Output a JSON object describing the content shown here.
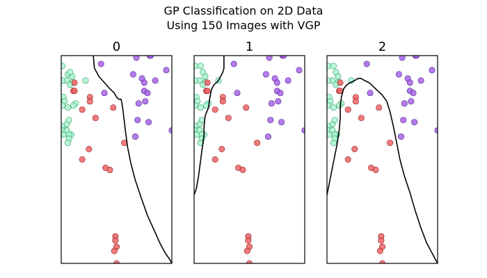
{
  "figure": {
    "title_line1": "GP Classification on 2D Data",
    "title_line2": "Using 150 Images with VGP"
  },
  "colors": {
    "class_green": "#aff5d2",
    "class_green_edge": "#1f9a5a",
    "class_red": "#ee6466",
    "class_red_edge": "#8a1e1e",
    "class_purple": "#a864ea",
    "class_purple_edge": "#4c1f86",
    "boundary": "#000000"
  },
  "chart_data": [
    {
      "type": "scatter",
      "title": "0",
      "xlim": [
        0,
        100
      ],
      "ylim": [
        0,
        100
      ],
      "grid": false,
      "series": [
        {
          "class": "green",
          "points": [
            [
              1,
              95
            ],
            [
              6,
              91
            ],
            [
              10,
              90
            ],
            [
              5,
              88
            ],
            [
              1,
              88
            ],
            [
              10,
              87
            ],
            [
              22,
              88
            ],
            [
              8,
              86
            ],
            [
              2,
              80
            ],
            [
              13,
              77
            ],
            [
              11,
              76
            ],
            [
              3,
              78
            ],
            [
              1,
              76
            ],
            [
              6,
              75
            ],
            [
              5,
              67
            ],
            [
              1,
              66
            ],
            [
              1,
              64
            ],
            [
              5,
              64
            ],
            [
              2,
              62
            ],
            [
              9,
              62
            ],
            [
              7,
              62
            ],
            [
              7,
              60
            ],
            [
              6,
              58
            ],
            [
              7,
              69
            ],
            [
              8,
              92
            ]
          ]
        },
        {
          "class": "red",
          "points": [
            [
              12,
              87
            ],
            [
              11,
              83
            ],
            [
              12,
              83
            ],
            [
              26,
              80
            ],
            [
              19,
              74
            ],
            [
              26,
              78
            ],
            [
              47,
              75
            ],
            [
              31,
              70
            ],
            [
              57,
              58
            ],
            [
              25,
              55
            ],
            [
              19,
              50
            ],
            [
              40,
              46
            ],
            [
              44,
              45
            ],
            [
              49,
              13
            ],
            [
              49,
              11
            ],
            [
              50,
              8
            ],
            [
              48,
              6
            ],
            [
              50,
              0
            ]
          ]
        },
        {
          "class": "purple",
          "points": [
            [
              80,
              100
            ],
            [
              81,
              100
            ],
            [
              68,
              99
            ],
            [
              36,
              96
            ],
            [
              95,
              93
            ],
            [
              65,
              91
            ],
            [
              73,
              89
            ],
            [
              75,
              87
            ],
            [
              85,
              88
            ],
            [
              75,
              83
            ],
            [
              78,
              82
            ],
            [
              39,
              82
            ],
            [
              76,
              78
            ],
            [
              70,
              77
            ],
            [
              69,
              69
            ],
            [
              79,
              68
            ],
            [
              67,
              61
            ],
            [
              100,
              64
            ]
          ]
        }
      ],
      "boundary": [
        [
          29,
          100
        ],
        [
          30,
          94
        ],
        [
          34,
          90
        ],
        [
          39,
          87
        ],
        [
          44,
          84
        ],
        [
          48,
          82
        ],
        [
          50,
          80
        ],
        [
          52,
          79
        ],
        [
          54,
          79
        ],
        [
          55,
          77
        ],
        [
          56,
          73
        ],
        [
          58,
          64
        ],
        [
          60,
          56
        ],
        [
          63,
          48
        ],
        [
          67,
          40
        ],
        [
          72,
          32
        ],
        [
          78,
          23
        ],
        [
          84,
          16
        ],
        [
          89,
          10
        ],
        [
          94,
          5
        ],
        [
          98,
          2
        ],
        [
          100,
          0
        ]
      ]
    },
    {
      "type": "scatter",
      "title": "1",
      "xlim": [
        0,
        100
      ],
      "ylim": [
        0,
        100
      ],
      "grid": false,
      "series": [
        {
          "class": "green",
          "points": [
            [
              1,
              95
            ],
            [
              6,
              95
            ],
            [
              10,
              90
            ],
            [
              5,
              88
            ],
            [
              1,
              88
            ],
            [
              10,
              87
            ],
            [
              22,
              88
            ],
            [
              8,
              86
            ],
            [
              2,
              80
            ],
            [
              13,
              77
            ],
            [
              11,
              76
            ],
            [
              3,
              78
            ],
            [
              1,
              76
            ],
            [
              6,
              75
            ],
            [
              5,
              67
            ],
            [
              1,
              66
            ],
            [
              1,
              64
            ],
            [
              5,
              64
            ],
            [
              2,
              62
            ],
            [
              9,
              62
            ],
            [
              7,
              62
            ],
            [
              7,
              60
            ],
            [
              6,
              58
            ],
            [
              7,
              69
            ],
            [
              8,
              92
            ]
          ]
        },
        {
          "class": "red",
          "points": [
            [
              12,
              87
            ],
            [
              11,
              83
            ],
            [
              12,
              83
            ],
            [
              26,
              80
            ],
            [
              19,
              74
            ],
            [
              26,
              78
            ],
            [
              47,
              75
            ],
            [
              31,
              70
            ],
            [
              57,
              58
            ],
            [
              25,
              55
            ],
            [
              19,
              50
            ],
            [
              40,
              46
            ],
            [
              44,
              45
            ],
            [
              49,
              13
            ],
            [
              49,
              11
            ],
            [
              50,
              8
            ],
            [
              48,
              6
            ],
            [
              50,
              0
            ]
          ]
        },
        {
          "class": "purple",
          "points": [
            [
              80,
              100
            ],
            [
              81,
              100
            ],
            [
              68,
              99
            ],
            [
              36,
              96
            ],
            [
              95,
              93
            ],
            [
              65,
              91
            ],
            [
              73,
              89
            ],
            [
              75,
              87
            ],
            [
              85,
              88
            ],
            [
              75,
              83
            ],
            [
              78,
              82
            ],
            [
              39,
              82
            ],
            [
              76,
              78
            ],
            [
              70,
              77
            ],
            [
              69,
              69
            ],
            [
              79,
              68
            ],
            [
              67,
              61
            ],
            [
              100,
              64
            ]
          ]
        }
      ],
      "boundary": [
        [
          27,
          100
        ],
        [
          27,
          94
        ],
        [
          26,
          92
        ],
        [
          24,
          90
        ],
        [
          22,
          88
        ],
        [
          20,
          87
        ],
        [
          18,
          86
        ],
        [
          16,
          84
        ],
        [
          15,
          82
        ],
        [
          14,
          79
        ],
        [
          13,
          75
        ],
        [
          10,
          71
        ],
        [
          9,
          66
        ],
        [
          9,
          62
        ],
        [
          8,
          58
        ],
        [
          6,
          50
        ],
        [
          4,
          42
        ],
        [
          2,
          36
        ],
        [
          0,
          33
        ]
      ]
    },
    {
      "type": "scatter",
      "title": "2",
      "xlim": [
        0,
        100
      ],
      "ylim": [
        0,
        100
      ],
      "grid": false,
      "series": [
        {
          "class": "green",
          "points": [
            [
              1,
              95
            ],
            [
              6,
              95
            ],
            [
              10,
              90
            ],
            [
              5,
              88
            ],
            [
              1,
              88
            ],
            [
              10,
              87
            ],
            [
              22,
              88
            ],
            [
              8,
              86
            ],
            [
              2,
              80
            ],
            [
              13,
              77
            ],
            [
              11,
              76
            ],
            [
              3,
              78
            ],
            [
              1,
              76
            ],
            [
              6,
              75
            ],
            [
              5,
              67
            ],
            [
              1,
              66
            ],
            [
              1,
              64
            ],
            [
              5,
              64
            ],
            [
              2,
              62
            ],
            [
              9,
              62
            ],
            [
              7,
              62
            ],
            [
              7,
              60
            ],
            [
              6,
              58
            ],
            [
              7,
              69
            ],
            [
              8,
              92
            ]
          ]
        },
        {
          "class": "red",
          "points": [
            [
              12,
              87
            ],
            [
              11,
              83
            ],
            [
              12,
              83
            ],
            [
              26,
              80
            ],
            [
              19,
              74
            ],
            [
              26,
              78
            ],
            [
              47,
              75
            ],
            [
              31,
              70
            ],
            [
              57,
              58
            ],
            [
              25,
              55
            ],
            [
              19,
              50
            ],
            [
              40,
              46
            ],
            [
              44,
              45
            ],
            [
              49,
              13
            ],
            [
              49,
              11
            ],
            [
              50,
              8
            ],
            [
              48,
              6
            ],
            [
              50,
              0
            ]
          ]
        },
        {
          "class": "purple",
          "points": [
            [
              80,
              100
            ],
            [
              81,
              100
            ],
            [
              68,
              99
            ],
            [
              36,
              96
            ],
            [
              95,
              93
            ],
            [
              65,
              91
            ],
            [
              73,
              89
            ],
            [
              75,
              87
            ],
            [
              85,
              88
            ],
            [
              75,
              83
            ],
            [
              78,
              82
            ],
            [
              39,
              82
            ],
            [
              76,
              78
            ],
            [
              70,
              77
            ],
            [
              69,
              69
            ],
            [
              79,
              68
            ],
            [
              67,
              61
            ],
            [
              100,
              64
            ]
          ]
        }
      ],
      "boundary": [
        [
          0,
          33
        ],
        [
          3,
          41
        ],
        [
          6,
          49
        ],
        [
          9,
          57
        ],
        [
          11,
          64
        ],
        [
          12,
          70
        ],
        [
          12,
          76
        ],
        [
          13,
          80
        ],
        [
          15,
          84
        ],
        [
          18,
          86
        ],
        [
          21,
          87
        ],
        [
          25,
          88
        ],
        [
          28,
          89
        ],
        [
          31,
          89
        ],
        [
          34,
          88
        ],
        [
          38,
          87
        ],
        [
          42,
          85
        ],
        [
          46,
          83
        ],
        [
          50,
          81
        ],
        [
          54,
          78
        ],
        [
          57,
          73
        ],
        [
          60,
          66
        ],
        [
          63,
          58
        ],
        [
          66,
          50
        ],
        [
          70,
          42
        ],
        [
          75,
          34
        ],
        [
          80,
          25
        ],
        [
          85,
          17
        ],
        [
          90,
          10
        ],
        [
          95,
          5
        ],
        [
          100,
          0
        ]
      ]
    }
  ]
}
